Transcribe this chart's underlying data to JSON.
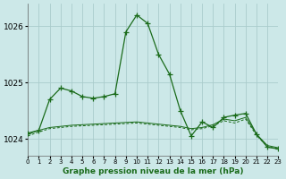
{
  "title": "Graphe pression niveau de la mer (hPa)",
  "background_color": "#cce8e8",
  "grid_color": "#aacccc",
  "line_color": "#1a6b1a",
  "xlim": [
    0,
    23
  ],
  "ylim": [
    1023.7,
    1026.4
  ],
  "yticks": [
    1024,
    1025,
    1026
  ],
  "xticks": [
    0,
    1,
    2,
    3,
    4,
    5,
    6,
    7,
    8,
    9,
    10,
    11,
    12,
    13,
    14,
    15,
    16,
    17,
    18,
    19,
    20,
    21,
    22,
    23
  ],
  "series1_x": [
    0,
    1,
    2,
    3,
    4,
    5,
    6,
    7,
    8,
    9,
    10,
    11,
    12,
    13,
    14,
    15,
    16,
    17,
    18,
    19,
    20,
    21,
    22,
    23
  ],
  "series1_y": [
    1024.1,
    1024.15,
    1024.7,
    1024.9,
    1024.85,
    1024.75,
    1024.72,
    1024.75,
    1024.8,
    1025.9,
    1026.2,
    1026.05,
    1025.5,
    1025.15,
    1024.5,
    1024.05,
    1024.3,
    1024.2,
    1024.38,
    1024.42,
    1024.45,
    1024.08,
    1023.85,
    1023.82
  ],
  "series2_x": [
    0,
    1,
    2,
    3,
    4,
    5,
    6,
    7,
    8,
    9,
    10,
    11,
    12,
    13,
    14,
    15,
    16,
    17,
    18,
    19,
    20,
    21,
    22,
    23
  ],
  "series2_y": [
    1024.08,
    1024.15,
    1024.2,
    1024.22,
    1024.24,
    1024.25,
    1024.26,
    1024.27,
    1024.28,
    1024.29,
    1024.3,
    1024.28,
    1024.26,
    1024.24,
    1024.22,
    1024.18,
    1024.2,
    1024.25,
    1024.35,
    1024.32,
    1024.38,
    1024.08,
    1023.88,
    1023.84
  ],
  "series3_x": [
    0,
    1,
    2,
    3,
    4,
    5,
    6,
    7,
    8,
    9,
    10,
    11,
    12,
    13,
    14,
    15,
    16,
    17,
    18,
    19,
    20,
    21,
    22,
    23
  ],
  "series3_y": [
    1024.05,
    1024.12,
    1024.18,
    1024.2,
    1024.22,
    1024.23,
    1024.24,
    1024.25,
    1024.26,
    1024.27,
    1024.28,
    1024.26,
    1024.24,
    1024.22,
    1024.2,
    1024.16,
    1024.18,
    1024.23,
    1024.32,
    1024.28,
    1024.35,
    1024.06,
    1023.86,
    1023.82
  ],
  "ylabel_fontsize": 5.5,
  "xlabel_fontsize": 6.5,
  "tick_labelsize": 5.5
}
